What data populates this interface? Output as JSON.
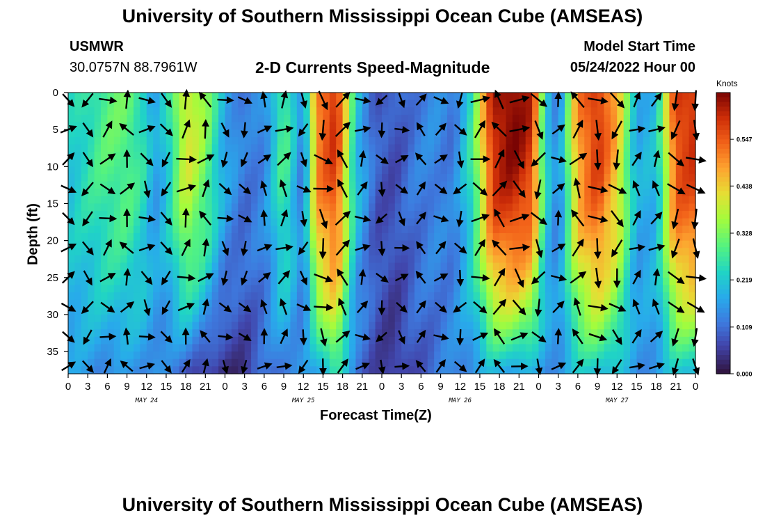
{
  "page": {
    "title": "University of Southern Mississippi Ocean Cube (AMSEAS)",
    "footer_title": "University of Southern Mississippi Ocean Cube (AMSEAS)"
  },
  "header": {
    "station": "USMWR",
    "coords": "30.0757N  88.7961W",
    "subtitle": "2-D Currents Speed-Magnitude",
    "model_label": "Model Start Time",
    "model_time": "05/24/2022 Hour 00"
  },
  "chart_data": {
    "type": "heatmap",
    "title": "2-D Currents Speed-Magnitude",
    "xlabel": "Forecast Time(Z)",
    "ylabel": "Depth (ft)",
    "x_hours": [
      0,
      96
    ],
    "x_tick_labels": [
      "0",
      "3",
      "6",
      "9",
      "12",
      "15",
      "18",
      "21",
      "0",
      "3",
      "6",
      "9",
      "12",
      "15",
      "18",
      "21",
      "0",
      "3",
      "6",
      "9",
      "12",
      "15",
      "18",
      "21",
      "0",
      "3",
      "6",
      "9",
      "12",
      "15",
      "18",
      "21",
      "0"
    ],
    "month_labels": [
      {
        "label": "MAY 24",
        "hour": 12
      },
      {
        "label": "MAY 25",
        "hour": 36
      },
      {
        "label": "MAY 26",
        "hour": 60
      },
      {
        "label": "MAY 27",
        "hour": 84
      }
    ],
    "ylim": [
      0,
      38
    ],
    "y_ticks": [
      0,
      5,
      10,
      15,
      20,
      25,
      30,
      35
    ],
    "y_tick_labels": [
      "0",
      "5",
      "10",
      "15",
      "20",
      "25",
      "30",
      "35"
    ],
    "colorbar": {
      "unit": "Knots",
      "range": [
        0,
        0.656
      ],
      "ticks": [
        0.0,
        0.109,
        0.219,
        0.328,
        0.438,
        0.547
      ],
      "tick_labels": [
        "0.000",
        "0.109",
        "0.219",
        "0.328",
        "0.438",
        "0.547"
      ]
    },
    "speed_bands": [
      {
        "t": 0,
        "surface": 0.22,
        "bottom": 0.16
      },
      {
        "t": 3,
        "surface": 0.26,
        "bottom": 0.15
      },
      {
        "t": 6,
        "surface": 0.3,
        "bottom": 0.14
      },
      {
        "t": 9,
        "surface": 0.31,
        "bottom": 0.14
      },
      {
        "t": 12,
        "surface": 0.24,
        "bottom": 0.15
      },
      {
        "t": 13,
        "surface": 0.16,
        "bottom": 0.16
      },
      {
        "t": 15,
        "surface": 0.22,
        "bottom": 0.12
      },
      {
        "t": 18,
        "surface": 0.42,
        "bottom": 0.09
      },
      {
        "t": 21,
        "surface": 0.34,
        "bottom": 0.05
      },
      {
        "t": 24,
        "surface": 0.18,
        "bottom": 0.03
      },
      {
        "t": 27,
        "surface": 0.12,
        "bottom": 0.05
      },
      {
        "t": 30,
        "surface": 0.14,
        "bottom": 0.1
      },
      {
        "t": 33,
        "surface": 0.3,
        "bottom": 0.13
      },
      {
        "t": 36,
        "surface": 0.12,
        "bottom": 0.14
      },
      {
        "t": 38,
        "surface": 0.52,
        "bottom": 0.16
      },
      {
        "t": 41,
        "surface": 0.6,
        "bottom": 0.28
      },
      {
        "t": 44,
        "surface": 0.22,
        "bottom": 0.1
      },
      {
        "t": 47,
        "surface": 0.09,
        "bottom": 0.07
      },
      {
        "t": 50,
        "surface": 0.08,
        "bottom": 0.04
      },
      {
        "t": 53,
        "surface": 0.12,
        "bottom": 0.08
      },
      {
        "t": 56,
        "surface": 0.14,
        "bottom": 0.1
      },
      {
        "t": 59,
        "surface": 0.12,
        "bottom": 0.14
      },
      {
        "t": 62,
        "surface": 0.28,
        "bottom": 0.15
      },
      {
        "t": 65,
        "surface": 0.62,
        "bottom": 0.18
      },
      {
        "t": 68,
        "surface": 0.66,
        "bottom": 0.18
      },
      {
        "t": 71,
        "surface": 0.6,
        "bottom": 0.16
      },
      {
        "t": 73,
        "surface": 0.24,
        "bottom": 0.14
      },
      {
        "t": 75,
        "surface": 0.12,
        "bottom": 0.16
      },
      {
        "t": 78,
        "surface": 0.5,
        "bottom": 0.2
      },
      {
        "t": 81,
        "surface": 0.6,
        "bottom": 0.22
      },
      {
        "t": 84,
        "surface": 0.46,
        "bottom": 0.2
      },
      {
        "t": 87,
        "surface": 0.18,
        "bottom": 0.14
      },
      {
        "t": 90,
        "surface": 0.2,
        "bottom": 0.16
      },
      {
        "t": 93,
        "surface": 0.58,
        "bottom": 0.2
      },
      {
        "t": 96,
        "surface": 0.6,
        "bottom": 0.22
      }
    ],
    "vectors": "current direction arrows at 3-hour and ~4 ft intervals"
  }
}
